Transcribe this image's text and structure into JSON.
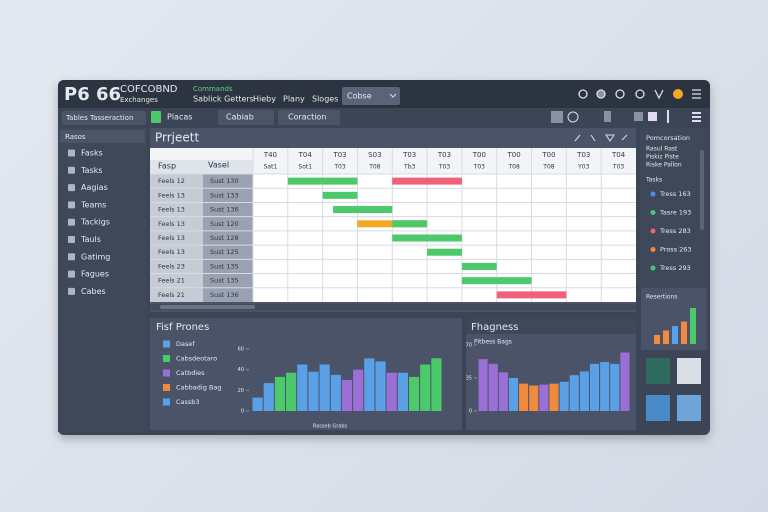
{
  "header": {
    "logo": "P6 66",
    "brand": "COFCOBND",
    "brand_sub": "Exchanges",
    "menu_top": "Commands",
    "menu": [
      "Sablick Getters",
      "Hieby",
      "Plany",
      "Sloges"
    ],
    "dropdown": "Cobse"
  },
  "toolbar": {
    "search": "Tables Tasseraction",
    "tabs": [
      "Placas",
      "Cabiab",
      "Coraction"
    ]
  },
  "sidebar": {
    "title": "Rasos",
    "items": [
      "Fasks",
      "Tasks",
      "Aagias",
      "Teams",
      "Tackigs",
      "Tauls",
      "Gatimg",
      "Fagues",
      "Cabes"
    ]
  },
  "gantt": {
    "title": "Prrjeett",
    "col_headers": [
      "Fasp",
      "Vasel"
    ],
    "dates": [
      "T40",
      "T04",
      "T03",
      "S03",
      "T03",
      "T03",
      "T00",
      "T00",
      "T00",
      "T03",
      "T04"
    ],
    "subdates": [
      "Sat1",
      "Sot1",
      "T03",
      "T08",
      "Tb3",
      "T03",
      "T03",
      "T08",
      "T08",
      "Y03",
      "T03"
    ],
    "rows": [
      [
        "Feels 12",
        "Sust 130"
      ],
      [
        "Feels 13",
        "Sust 133"
      ],
      [
        "Feels 13",
        "Sust 136"
      ],
      [
        "Feels 13",
        "Sust 120"
      ],
      [
        "Feels 13",
        "Sust 128"
      ],
      [
        "Feels 13",
        "Sust 125"
      ],
      [
        "Feels 23",
        "Sust 135"
      ],
      [
        "Feels 21",
        "Sust 135"
      ],
      [
        "Feels 21",
        "Sust 136"
      ]
    ],
    "xlim": [
      0,
      11
    ],
    "bars": [
      {
        "row": 0,
        "start": 1,
        "end": 3,
        "color": "#4cc96b"
      },
      {
        "row": 0,
        "start": 4,
        "end": 6,
        "color": "#f0607a"
      },
      {
        "row": 1,
        "start": 2,
        "end": 3,
        "color": "#4cc96b"
      },
      {
        "row": 2,
        "start": 2.3,
        "end": 4,
        "color": "#4cc96b"
      },
      {
        "row": 3,
        "start": 3,
        "end": 5,
        "color": "#f5a623"
      },
      {
        "row": 3,
        "start": 4,
        "end": 5,
        "color": "#4cc96b"
      },
      {
        "row": 4,
        "start": 4,
        "end": 6,
        "color": "#4cc96b"
      },
      {
        "row": 5,
        "start": 5,
        "end": 6,
        "color": "#4cc96b"
      },
      {
        "row": 6,
        "start": 6,
        "end": 7,
        "color": "#4cc96b"
      },
      {
        "row": 7,
        "start": 6,
        "end": 8,
        "color": "#4cc96b"
      },
      {
        "row": 8,
        "start": 7,
        "end": 9,
        "color": "#f0607a"
      }
    ]
  },
  "right_panel": {
    "title": "Pomcorsation",
    "lines": [
      "Rasul Rast",
      "Piskiz Piste",
      "Riske Pallon"
    ],
    "section": "Tasks",
    "items": [
      {
        "label": "Tress 163",
        "color": "#4a90e2"
      },
      {
        "label": "Tasre 193",
        "color": "#4cc96b"
      },
      {
        "label": "Tress 283",
        "color": "#f0607a"
      },
      {
        "label": "Pross 263",
        "color": "#f08a3c"
      },
      {
        "label": "Tress 293",
        "color": "#4cc96b"
      }
    ],
    "card_title": "Resertions",
    "card_values": [
      2,
      3,
      4,
      5,
      8
    ],
    "card_colors": [
      "#f08a3c",
      "#f08a3c",
      "#5aa0e6",
      "#f08a3c",
      "#4cc96b"
    ]
  },
  "charts": [
    {
      "title": "Fisf Prones",
      "legend": [
        {
          "name": "Dasef",
          "color": "#5aa0e6"
        },
        {
          "name": "Cabsdeotaro",
          "color": "#4cc96b"
        },
        {
          "name": "Catbdies",
          "color": "#9b6fd6"
        },
        {
          "name": "Cabbadig Bag",
          "color": "#f08a3c"
        },
        {
          "name": "Cassb3",
          "color": "#5aa0e6"
        }
      ],
      "x_label": "Rasseb Grabs",
      "ylim": [
        0,
        60
      ],
      "yticks": [
        0,
        20,
        40,
        60
      ],
      "values": [
        13,
        27,
        33,
        37,
        45,
        38,
        45,
        35,
        30,
        40,
        51,
        48,
        37,
        37,
        33,
        45,
        51
      ],
      "colors": [
        "#5aa0e6",
        "#5aa0e6",
        "#4cc96b",
        "#4cc96b",
        "#5aa0e6",
        "#5aa0e6",
        "#5aa0e6",
        "#5aa0e6",
        "#9b6fd6",
        "#9b6fd6",
        "#5aa0e6",
        "#5aa0e6",
        "#9b6fd6",
        "#5aa0e6",
        "#4cc96b",
        "#4cc96b",
        "#4cc96b"
      ]
    },
    {
      "title": "Fhagness",
      "subtitle": "Pitbess Bags",
      "ylim": [
        0,
        70
      ],
      "yticks": [
        0,
        35,
        70
      ],
      "values": [
        55,
        50,
        41,
        35,
        29,
        27,
        28,
        29,
        31,
        38,
        42,
        50,
        52,
        50,
        62
      ],
      "colors": [
        "#9b6fd6",
        "#9b6fd6",
        "#9b6fd6",
        "#5aa0e6",
        "#f08a3c",
        "#f08a3c",
        "#9b6fd6",
        "#f08a3c",
        "#5aa0e6",
        "#5aa0e6",
        "#5aa0e6",
        "#5aa0e6",
        "#5aa0e6",
        "#5aa0e6",
        "#9b6fd6"
      ]
    }
  ]
}
